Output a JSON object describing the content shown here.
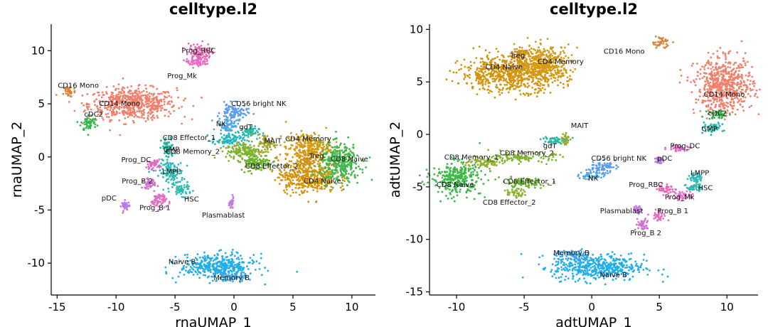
{
  "chart_data": [
    {
      "type": "scatter",
      "title": "celltype.l2",
      "xlabel": "rnaUMAP_1",
      "ylabel": "rnaUMAP_2",
      "xlim": [
        -15.5,
        12
      ],
      "ylim": [
        -13,
        12.5
      ],
      "xticks": [
        -15,
        -10,
        -5,
        0,
        5,
        10
      ],
      "yticks": [
        -10,
        -5,
        0,
        5,
        10
      ],
      "grid": false,
      "legend": "none",
      "clusters": [
        {
          "name": "CD14 Mono",
          "color": "#F07F6B",
          "cx": -8.6,
          "cy": 5.0,
          "rx": 3.3,
          "ry": 1.3,
          "label": [
            -9.7,
            5.0
          ]
        },
        {
          "name": "CD16 Mono",
          "color": "#D8833A",
          "cx": -14.0,
          "cy": 6.2,
          "rx": 0.5,
          "ry": 0.5,
          "label": [
            -13.2,
            6.7
          ]
        },
        {
          "name": "cDC2",
          "color": "#2FB84C",
          "cx": -12.3,
          "cy": 3.2,
          "rx": 0.6,
          "ry": 0.7,
          "label": [
            -11.9,
            4.0
          ]
        },
        {
          "name": "Prog_RBC",
          "color": "#E965B0",
          "cx": -3.0,
          "cy": 9.7,
          "rx": 0.9,
          "ry": 0.9,
          "label": [
            -3.0,
            10.0
          ]
        },
        {
          "name": "Prog_Mk",
          "color": "#E86CC8",
          "cx": -3.3,
          "cy": 8.9,
          "rx": 0.6,
          "ry": 0.4,
          "label": [
            -4.4,
            7.6
          ]
        },
        {
          "name": "GMP",
          "color": "#23B8A6",
          "cx": -5.6,
          "cy": 0.8,
          "rx": 0.5,
          "ry": 0.9,
          "label": [
            -5.3,
            0.7
          ]
        },
        {
          "name": "Prog_DC",
          "color": "#E069C6",
          "cx": -6.8,
          "cy": -0.7,
          "rx": 0.5,
          "ry": 0.4,
          "label": [
            -8.3,
            -0.3
          ]
        },
        {
          "name": "LMPP",
          "color": "#2EB8B8",
          "cx": -5.3,
          "cy": -1.5,
          "rx": 0.9,
          "ry": 1.0,
          "label": [
            -5.3,
            -1.4
          ]
        },
        {
          "name": "Prog_B 2",
          "color": "#CF72D3",
          "cx": -7.2,
          "cy": -2.5,
          "rx": 0.5,
          "ry": 0.4,
          "label": [
            -8.2,
            -2.3
          ]
        },
        {
          "name": "pDC",
          "color": "#B87BE0",
          "cx": -9.2,
          "cy": -4.6,
          "rx": 0.3,
          "ry": 0.4,
          "label": [
            -10.6,
            -3.9
          ]
        },
        {
          "name": "Prog_B 1",
          "color": "#E06DC0",
          "cx": -6.4,
          "cy": -4.1,
          "rx": 0.6,
          "ry": 0.7,
          "label": [
            -6.7,
            -4.8
          ]
        },
        {
          "name": "HSC",
          "color": "#2ABBB0",
          "cx": -4.4,
          "cy": -3.1,
          "rx": 0.7,
          "ry": 0.5,
          "label": [
            -3.6,
            -4.0
          ]
        },
        {
          "name": "Plasmablast",
          "color": "#C77DE0",
          "cx": -0.2,
          "cy": -4.4,
          "rx": 0.15,
          "ry": 0.5,
          "label": [
            -0.9,
            -5.5
          ]
        },
        {
          "name": "CD56 bright NK",
          "color": "#5A9AF0",
          "cx": 0.0,
          "cy": 4.2,
          "rx": 1.0,
          "ry": 0.7,
          "label": [
            2.1,
            5.0
          ]
        },
        {
          "name": "NK",
          "color": "#4BA5E8",
          "cx": -0.5,
          "cy": 3.0,
          "rx": 0.8,
          "ry": 0.6,
          "label": [
            -1.1,
            3.1
          ]
        },
        {
          "name": "gdT",
          "color": "#29B8A8",
          "cx": 1.2,
          "cy": 2.3,
          "rx": 0.8,
          "ry": 0.5,
          "label": [
            1.0,
            2.8
          ]
        },
        {
          "name": "CD8 Effector_1",
          "color": "#21B7C0",
          "cx": -0.5,
          "cy": 1.6,
          "rx": 1.2,
          "ry": 0.5,
          "label": [
            -3.8,
            1.8
          ]
        },
        {
          "name": "CD8 Memory_2",
          "color": "#7FB22D",
          "cx": 0.8,
          "cy": 0.6,
          "rx": 1.3,
          "ry": 0.8,
          "label": [
            -3.5,
            0.5
          ]
        },
        {
          "name": "MAIT",
          "color": "#A5A52A",
          "cx": 2.8,
          "cy": 1.2,
          "rx": 0.7,
          "ry": 0.8,
          "label": [
            3.3,
            1.5
          ]
        },
        {
          "name": "CD8 Effector_2",
          "color": "#6BB12B",
          "cx": 1.9,
          "cy": -0.5,
          "rx": 1.2,
          "ry": 0.7,
          "label": [
            3.2,
            -0.9
          ]
        },
        {
          "name": "CD4 Memory",
          "color": "#D59A14",
          "cx": 6.3,
          "cy": 0.9,
          "rx": 1.7,
          "ry": 1.2,
          "label": [
            6.3,
            1.7
          ]
        },
        {
          "name": "Treg",
          "color": "#C98E0F",
          "cx": 6.2,
          "cy": -0.4,
          "rx": 0.6,
          "ry": 0.5,
          "label": [
            7.0,
            0.1
          ]
        },
        {
          "name": "CD4 Naive",
          "color": "#D3930B",
          "cx": 6.2,
          "cy": -1.8,
          "rx": 2.2,
          "ry": 1.4,
          "label": [
            7.5,
            -2.3
          ]
        },
        {
          "name": "CD8 Naive",
          "color": "#3FB849",
          "cx": 9.0,
          "cy": -0.6,
          "rx": 1.5,
          "ry": 1.6,
          "label": [
            9.8,
            -0.2
          ]
        },
        {
          "name": "Naive B",
          "color": "#20AEEA",
          "cx": -1.4,
          "cy": -10.3,
          "rx": 2.8,
          "ry": 1.0,
          "label": [
            -4.4,
            -9.9
          ]
        },
        {
          "name": "Memory B",
          "color": "#3BA5EA",
          "cx": -0.2,
          "cy": -11.3,
          "rx": 1.2,
          "ry": 0.4,
          "label": [
            -0.2,
            -11.4
          ]
        }
      ]
    },
    {
      "type": "scatter",
      "title": "celltype.l2",
      "xlabel": "adtUMAP_1",
      "ylabel": "adtUMAP_2",
      "xlim": [
        -12,
        12.3
      ],
      "ylim": [
        -15.3,
        10.5
      ],
      "xticks": [
        -10,
        -5,
        0,
        5,
        10
      ],
      "yticks": [
        -15,
        -10,
        -5,
        0,
        5,
        10
      ],
      "grid": false,
      "legend": "none",
      "clusters": [
        {
          "name": "CD4 Naive",
          "color": "#D3930B",
          "cx": -6.0,
          "cy": 5.8,
          "rx": 3.3,
          "ry": 1.5,
          "label": [
            -6.5,
            6.4
          ]
        },
        {
          "name": "Treg",
          "color": "#C98E0F",
          "cx": -5.3,
          "cy": 7.8,
          "rx": 0.5,
          "ry": 0.4,
          "label": [
            -5.5,
            7.5
          ]
        },
        {
          "name": "CD4 Memory",
          "color": "#D59A14",
          "cx": -3.6,
          "cy": 6.8,
          "rx": 1.8,
          "ry": 1.5,
          "label": [
            -2.3,
            6.9
          ]
        },
        {
          "name": "CD16 Mono",
          "color": "#D8833A",
          "cx": 5.1,
          "cy": 8.8,
          "rx": 0.6,
          "ry": 0.5,
          "label": [
            2.4,
            7.9
          ]
        },
        {
          "name": "CD14 Mono",
          "color": "#F07F6B",
          "cx": 9.8,
          "cy": 4.6,
          "rx": 1.9,
          "ry": 2.3,
          "label": [
            9.8,
            3.8
          ]
        },
        {
          "name": "cDC2",
          "color": "#2FB84C",
          "cx": 9.4,
          "cy": 1.9,
          "rx": 0.7,
          "ry": 0.4,
          "label": [
            9.3,
            2.0
          ]
        },
        {
          "name": "GMP",
          "color": "#23B8A6",
          "cx": 8.8,
          "cy": 0.6,
          "rx": 0.8,
          "ry": 0.4,
          "label": [
            8.7,
            0.5
          ]
        },
        {
          "name": "Prog_DC",
          "color": "#E069C6",
          "cx": 6.5,
          "cy": -1.3,
          "rx": 0.8,
          "ry": 0.3,
          "label": [
            6.9,
            -1.1
          ]
        },
        {
          "name": "pDC",
          "color": "#B87BE0",
          "cx": 5.0,
          "cy": -2.4,
          "rx": 0.2,
          "ry": 0.3,
          "label": [
            5.4,
            -2.3
          ]
        },
        {
          "name": "MAIT",
          "color": "#A5A52A",
          "cx": -2.0,
          "cy": -0.4,
          "rx": 0.3,
          "ry": 0.6,
          "label": [
            -0.9,
            0.8
          ]
        },
        {
          "name": "gdT",
          "color": "#29B8A8",
          "cx": -2.9,
          "cy": -0.6,
          "rx": 0.8,
          "ry": 0.4,
          "label": [
            -3.1,
            -1.1
          ]
        },
        {
          "name": "CD8 Memory_1",
          "color": "#8DB12C",
          "cx": -8.0,
          "cy": -2.7,
          "rx": 1.3,
          "ry": 0.4,
          "label": [
            -8.9,
            -2.2
          ]
        },
        {
          "name": "CD8 Memory_2",
          "color": "#7FB22D",
          "cx": -5.0,
          "cy": -2.2,
          "rx": 2.0,
          "ry": 0.4,
          "label": [
            -4.8,
            -1.8
          ]
        },
        {
          "name": "CD8 Naive",
          "color": "#3FB849",
          "cx": -10.0,
          "cy": -4.2,
          "rx": 1.6,
          "ry": 1.4,
          "label": [
            -10.1,
            -4.8
          ]
        },
        {
          "name": "CD8 Effector_1",
          "color": "#6BB12B",
          "cx": -5.1,
          "cy": -4.6,
          "rx": 1.5,
          "ry": 0.4,
          "label": [
            -4.6,
            -4.5
          ]
        },
        {
          "name": "CD8 Effector_2",
          "color": "#8DB12C",
          "cx": -5.6,
          "cy": -5.6,
          "rx": 0.6,
          "ry": 0.4,
          "label": [
            -6.1,
            -6.5
          ]
        },
        {
          "name": "CD56 bright NK",
          "color": "#5A9AF0",
          "cx": 0.7,
          "cy": -3.1,
          "rx": 0.9,
          "ry": 0.5,
          "label": [
            2.0,
            -2.3
          ]
        },
        {
          "name": "NK",
          "color": "#4BA5E8",
          "cx": 0.0,
          "cy": -3.9,
          "rx": 0.8,
          "ry": 0.4,
          "label": [
            0.1,
            -4.2
          ]
        },
        {
          "name": "Prog_RBC",
          "color": "#E965B0",
          "cx": 5.6,
          "cy": -5.2,
          "rx": 0.6,
          "ry": 0.4,
          "label": [
            4.0,
            -4.8
          ]
        },
        {
          "name": "Prog_Mk",
          "color": "#E86CC8",
          "cx": 6.7,
          "cy": -5.8,
          "rx": 0.8,
          "ry": 0.4,
          "label": [
            6.5,
            -6.0
          ]
        },
        {
          "name": "LMPP",
          "color": "#2EB8B8",
          "cx": 7.7,
          "cy": -4.1,
          "rx": 0.4,
          "ry": 0.4,
          "label": [
            8.0,
            -3.7
          ]
        },
        {
          "name": "HSC",
          "color": "#2ABBB0",
          "cx": 7.6,
          "cy": -5.0,
          "rx": 0.5,
          "ry": 0.4,
          "label": [
            8.4,
            -5.1
          ]
        },
        {
          "name": "Plasmablast",
          "color": "#C77DE0",
          "cx": 3.4,
          "cy": -7.2,
          "rx": 0.3,
          "ry": 0.3,
          "label": [
            2.2,
            -7.3
          ]
        },
        {
          "name": "Prog_B 1",
          "color": "#E06DC0",
          "cx": 5.0,
          "cy": -7.7,
          "rx": 0.5,
          "ry": 0.5,
          "label": [
            6.0,
            -7.3
          ]
        },
        {
          "name": "Prog_B 2",
          "color": "#CF72D3",
          "cx": 3.7,
          "cy": -8.6,
          "rx": 0.4,
          "ry": 0.5,
          "label": [
            4.0,
            -9.4
          ]
        },
        {
          "name": "Memory B",
          "color": "#3BA5EA",
          "cx": -1.3,
          "cy": -11.6,
          "rx": 1.2,
          "ry": 0.5,
          "label": [
            -1.5,
            -11.3
          ]
        },
        {
          "name": "Naive B",
          "color": "#20AEEA",
          "cx": 0.5,
          "cy": -12.7,
          "rx": 3.0,
          "ry": 1.1,
          "label": [
            1.6,
            -13.4
          ]
        }
      ]
    }
  ]
}
